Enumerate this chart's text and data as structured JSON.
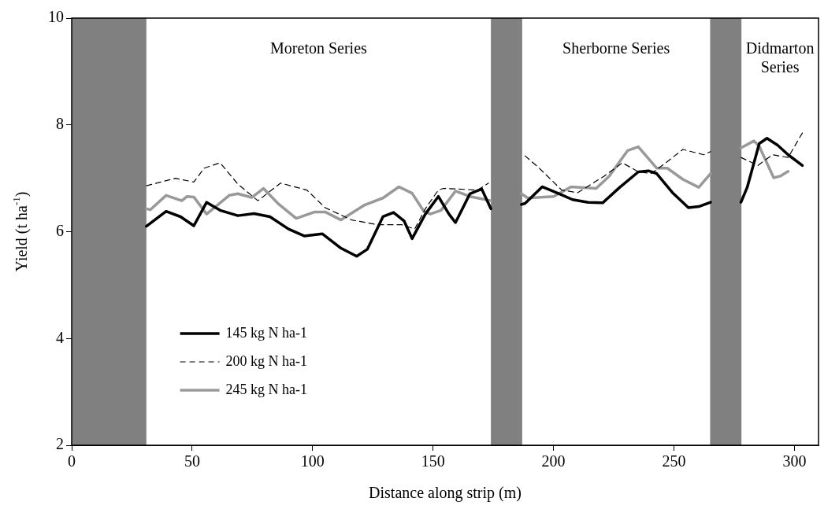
{
  "chart_data": {
    "type": "line",
    "xlabel": "Distance along strip (m)",
    "ylabel": "Yield (t ha$^{-1}$)",
    "xlim": [
      0,
      310
    ],
    "xticks": [
      0,
      50,
      100,
      150,
      200,
      250,
      300
    ],
    "ylim": [
      2,
      10
    ],
    "yticks": [
      2,
      4,
      6,
      8,
      10
    ],
    "grid": false,
    "legend": "bottom left",
    "marker": "none",
    "bands": [
      {
        "axis": "x",
        "from": 0,
        "to": 31,
        "color": "#808080"
      },
      {
        "axis": "x",
        "from": 174,
        "to": 187,
        "color": "#808080"
      },
      {
        "axis": "x",
        "from": 265,
        "to": 278,
        "color": "#808080"
      }
    ],
    "annotations": [
      "Moreton Series",
      "Sherborne Series",
      "Didmarton Series"
    ],
    "series": [
      {
        "name": "145 kg N ha-1",
        "color": "#000000",
        "line_style": "solid",
        "x": [
          31,
          39.2,
          45.2,
          50.7,
          56,
          61.6,
          69,
          75.7,
          82.3,
          90,
          96.5,
          104,
          111.8,
          118.3,
          122.7,
          129.2,
          133.6,
          138,
          141.3,
          146.8,
          152.2,
          156.6,
          159.3,
          165.3,
          170.2,
          174,
          180,
          186.7,
          188.2,
          195.3,
          202.4,
          207.9,
          214.4,
          220.4,
          227.5,
          235.2,
          239.4,
          242.8,
          249.4,
          256,
          260.3,
          265.2,
          271,
          277.8,
          280.4,
          285.4,
          288.6,
          293,
          297.4,
          303.3
        ],
        "values": [
          6.1,
          6.38,
          6.28,
          6.11,
          6.55,
          6.4,
          6.3,
          6.34,
          6.28,
          6.05,
          5.92,
          5.96,
          5.69,
          5.54,
          5.67,
          6.28,
          6.36,
          6.2,
          5.87,
          6.33,
          6.66,
          6.33,
          6.17,
          6.71,
          6.8,
          6.43,
          null,
          6.51,
          6.53,
          6.84,
          6.71,
          6.6,
          6.55,
          6.54,
          6.83,
          7.12,
          7.14,
          7.09,
          6.73,
          6.45,
          6.47,
          6.55,
          null,
          6.55,
          6.83,
          7.65,
          7.75,
          7.62,
          7.44,
          7.24
        ]
      },
      {
        "name": "200 kg N ha-1",
        "color": "#000000",
        "line_style": "dashed",
        "x": [
          31,
          43,
          50.7,
          55,
          61.6,
          69,
          77.3,
          86.7,
          97.6,
          105.2,
          116.2,
          127,
          137,
          142.4,
          146.8,
          152.2,
          154.3,
          168.6,
          173,
          180,
          188.2,
          193.6,
          203.4,
          210,
          221,
          228.6,
          235.2,
          240.6,
          247.2,
          253.7,
          262.4,
          265.2,
          271,
          277.8,
          284.8,
          290.9,
          297.4,
          303.3
        ],
        "values": [
          6.86,
          7.0,
          6.93,
          7.19,
          7.29,
          6.89,
          6.58,
          6.91,
          6.78,
          6.45,
          6.22,
          6.13,
          6.13,
          6.05,
          6.43,
          6.78,
          6.81,
          6.78,
          6.91,
          null,
          7.42,
          7.21,
          6.78,
          6.73,
          7.04,
          7.29,
          7.12,
          7.09,
          7.31,
          7.54,
          7.44,
          7.5,
          null,
          7.39,
          7.24,
          7.44,
          7.39,
          7.85
        ]
      },
      {
        "name": "245 kg N ha-1",
        "color": "#999999",
        "line_style": "solid",
        "x": [
          31,
          32.6,
          39.2,
          45.7,
          47.9,
          50.7,
          56,
          65.4,
          69,
          74.7,
          79.6,
          85.6,
          93.2,
          100.9,
          105.2,
          111.8,
          121.6,
          129.2,
          135.8,
          141.3,
          146.2,
          148.8,
          153.3,
          159.3,
          165.3,
          174,
          180,
          186.7,
          189.3,
          200.1,
          207.3,
          217.7,
          223.1,
          230.8,
          235.2,
          242.8,
          247.2,
          253.7,
          260.3,
          265.2,
          271,
          277.8,
          283.2,
          285.4,
          291.4,
          294.1,
          297.4
        ],
        "values": [
          6.43,
          6.41,
          6.68,
          6.58,
          6.66,
          6.65,
          6.33,
          6.68,
          6.71,
          6.64,
          6.81,
          6.53,
          6.25,
          6.37,
          6.37,
          6.22,
          6.5,
          6.63,
          6.84,
          6.72,
          6.38,
          6.33,
          6.4,
          6.76,
          6.66,
          6.58,
          null,
          6.71,
          6.63,
          6.66,
          6.84,
          6.81,
          7.04,
          7.52,
          7.59,
          7.19,
          7.19,
          6.98,
          6.83,
          7.09,
          null,
          7.57,
          7.7,
          7.6,
          7.01,
          7.04,
          7.13
        ]
      }
    ]
  }
}
